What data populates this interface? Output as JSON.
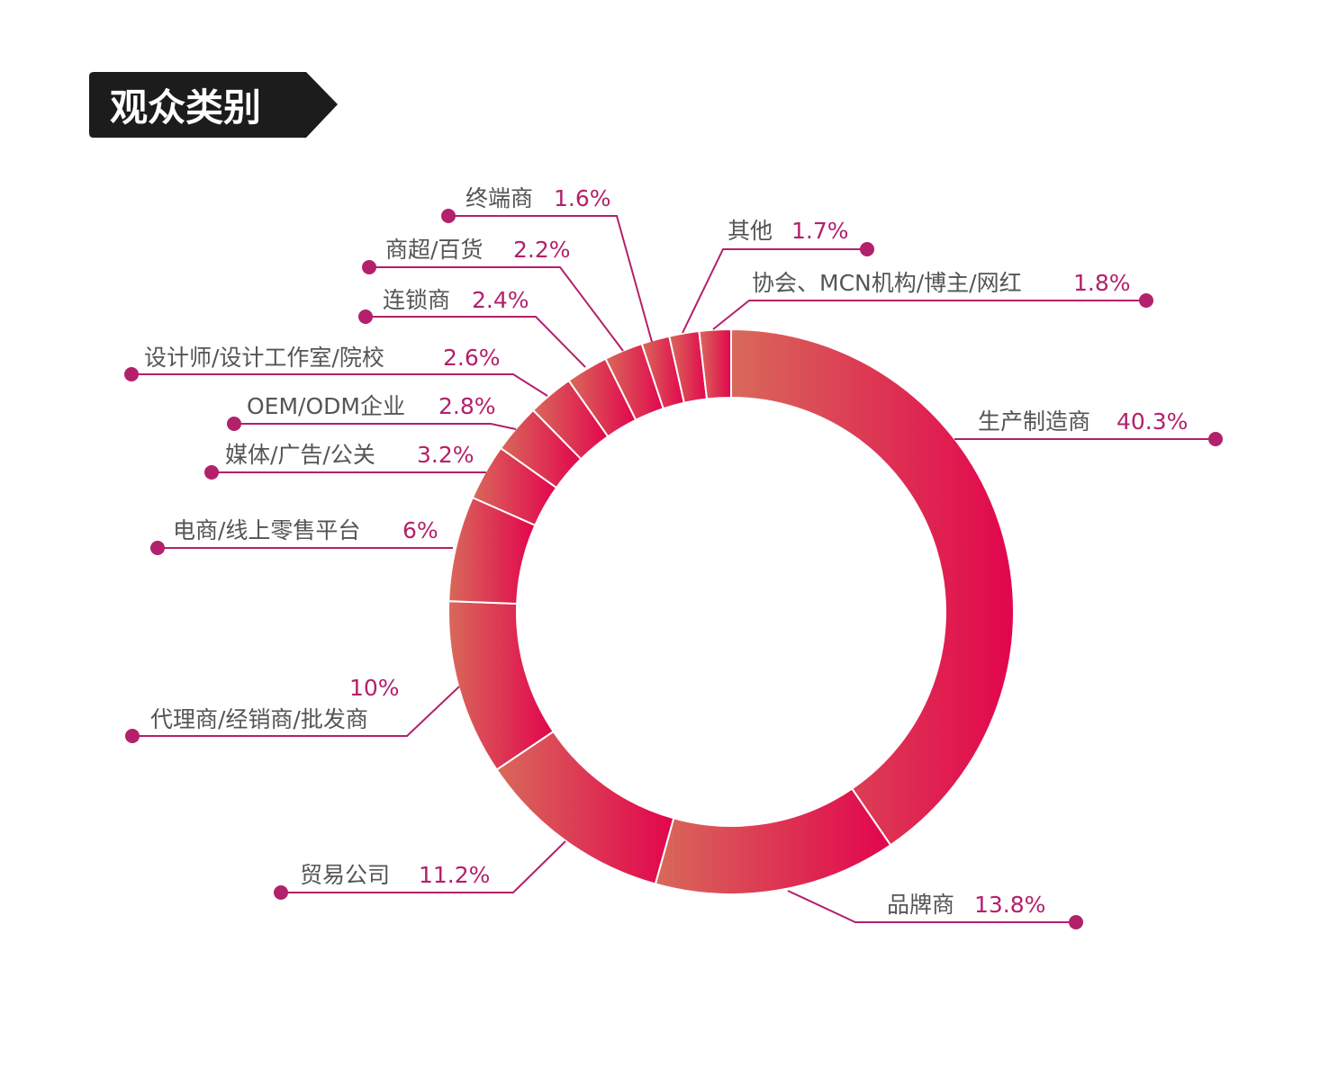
{
  "title": "观众类别",
  "colors": {
    "gradient_start": "#d8695a",
    "gradient_end": "#e2054d",
    "label": "#555555",
    "percent": "#b3206b",
    "leader": "#b3206b",
    "title_bg": "#1c1c1c"
  },
  "chart_data": {
    "type": "pie",
    "variant": "donut",
    "title": "观众类别",
    "start": "12 o'clock, clockwise",
    "slices": [
      {
        "label": "生产制造商",
        "value": 40.3,
        "display": "40.3%"
      },
      {
        "label": "品牌商",
        "value": 13.8,
        "display": "13.8%"
      },
      {
        "label": "贸易公司",
        "value": 11.2,
        "display": "11.2%"
      },
      {
        "label": "代理商/经销商/批发商",
        "value": 10,
        "display": "10%"
      },
      {
        "label": "电商/线上零售平台",
        "value": 6,
        "display": "6%"
      },
      {
        "label": "媒体/广告/公关",
        "value": 3.2,
        "display": "3.2%"
      },
      {
        "label": "OEM/ODM企业",
        "value": 2.8,
        "display": "2.8%"
      },
      {
        "label": "设计师/设计工作室/院校",
        "value": 2.6,
        "display": "2.6%"
      },
      {
        "label": "连锁商",
        "value": 2.4,
        "display": "2.4%"
      },
      {
        "label": "商超/百货",
        "value": 2.2,
        "display": "2.2%"
      },
      {
        "label": "终端商",
        "value": 1.6,
        "display": "1.6%"
      },
      {
        "label": "其他",
        "value": 1.7,
        "display": "1.7%"
      },
      {
        "label": "协会、MCN机构/博主/网红",
        "value": 1.8,
        "display": "1.8%"
      }
    ]
  }
}
